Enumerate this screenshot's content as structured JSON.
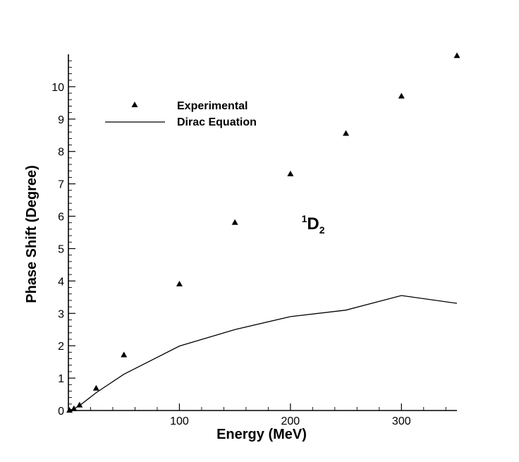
{
  "chart_data": {
    "type": "scatter",
    "xlabel": "Energy (MeV)",
    "ylabel": "Phase Shift (Degree)",
    "xlim": [
      0,
      350
    ],
    "ylim": [
      0,
      11
    ],
    "x_ticks": [
      100,
      200,
      300
    ],
    "y_ticks": [
      0,
      1,
      2,
      3,
      4,
      5,
      6,
      7,
      8,
      9,
      10
    ],
    "grid": false,
    "legend_position": "top-left",
    "annotation": {
      "superscript": "1",
      "main": "D",
      "subscript": "2",
      "x": 210,
      "y": 5.6
    },
    "series": [
      {
        "name": "Experimental",
        "style": "triangle-marker",
        "x": [
          1,
          5,
          10,
          25,
          50,
          100,
          150,
          200,
          250,
          300,
          350
        ],
        "y": [
          0.0,
          0.05,
          0.16,
          0.68,
          1.71,
          3.9,
          5.8,
          7.3,
          8.55,
          9.7,
          10.95
        ]
      },
      {
        "name": "Dirac Equation",
        "style": "line",
        "x": [
          0,
          5,
          10,
          25,
          50,
          100,
          150,
          200,
          250,
          300,
          350
        ],
        "y": [
          0.0,
          0.05,
          0.15,
          0.55,
          1.12,
          1.99,
          2.5,
          2.9,
          3.1,
          3.55,
          3.31
        ]
      }
    ]
  }
}
